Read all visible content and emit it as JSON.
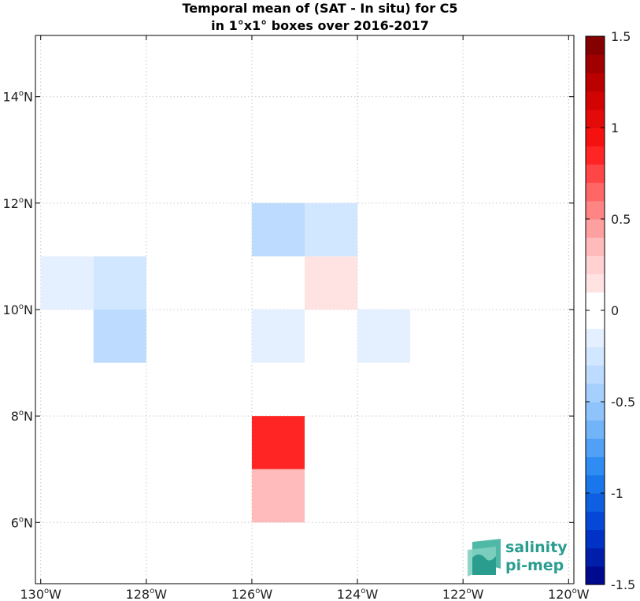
{
  "chart_data": {
    "type": "heatmap",
    "title": "Temporal mean of (SAT - In situ) for C5",
    "subtitle": "in 1°x1° boxes over 2016-2017",
    "xlim": [
      -130.1,
      -119.9
    ],
    "ylim": [
      4.85,
      15.15
    ],
    "grid": true,
    "x_ticks": [
      {
        "value": -130,
        "label": "130",
        "suffix": "W"
      },
      {
        "value": -128,
        "label": "128",
        "suffix": "W"
      },
      {
        "value": -126,
        "label": "126",
        "suffix": "W"
      },
      {
        "value": -124,
        "label": "124",
        "suffix": "W"
      },
      {
        "value": -122,
        "label": "122",
        "suffix": "W"
      },
      {
        "value": -120,
        "label": "120",
        "suffix": "W"
      }
    ],
    "y_ticks": [
      {
        "value": 6,
        "label": "6",
        "suffix": "N"
      },
      {
        "value": 8,
        "label": "8",
        "suffix": "N"
      },
      {
        "value": 10,
        "label": "10",
        "suffix": "N"
      },
      {
        "value": 12,
        "label": "12",
        "suffix": "N"
      },
      {
        "value": 14,
        "label": "14",
        "suffix": "N"
      }
    ],
    "cells": [
      {
        "lon": -130,
        "lat": 10,
        "value": -0.15
      },
      {
        "lon": -129,
        "lat": 10,
        "value": -0.25
      },
      {
        "lon": -129,
        "lat": 9,
        "value": -0.35
      },
      {
        "lon": -126,
        "lat": 11,
        "value": -0.35
      },
      {
        "lon": -125,
        "lat": 11,
        "value": -0.25
      },
      {
        "lon": -125,
        "lat": 10,
        "value": 0.15
      },
      {
        "lon": -126,
        "lat": 9,
        "value": -0.15
      },
      {
        "lon": -124,
        "lat": 9,
        "value": -0.15
      },
      {
        "lon": -126,
        "lat": 7,
        "value": 0.85
      },
      {
        "lon": -126,
        "lat": 6,
        "value": 0.35
      }
    ],
    "colorbar": {
      "range": [
        -1.5,
        1.5
      ],
      "levels": 30,
      "ticks": [
        1.5,
        1,
        0.5,
        0,
        -0.5,
        -1,
        -1.5
      ],
      "tick_labels": [
        "1.5",
        "1",
        "0.5",
        "0",
        "-0.5",
        "-1",
        "-1.5"
      ]
    }
  },
  "logo": {
    "line1": "salinity",
    "line2": "pi-mep"
  },
  "colors": {
    "logo": "#2a9d8f",
    "grid": "#c8c8c8"
  }
}
